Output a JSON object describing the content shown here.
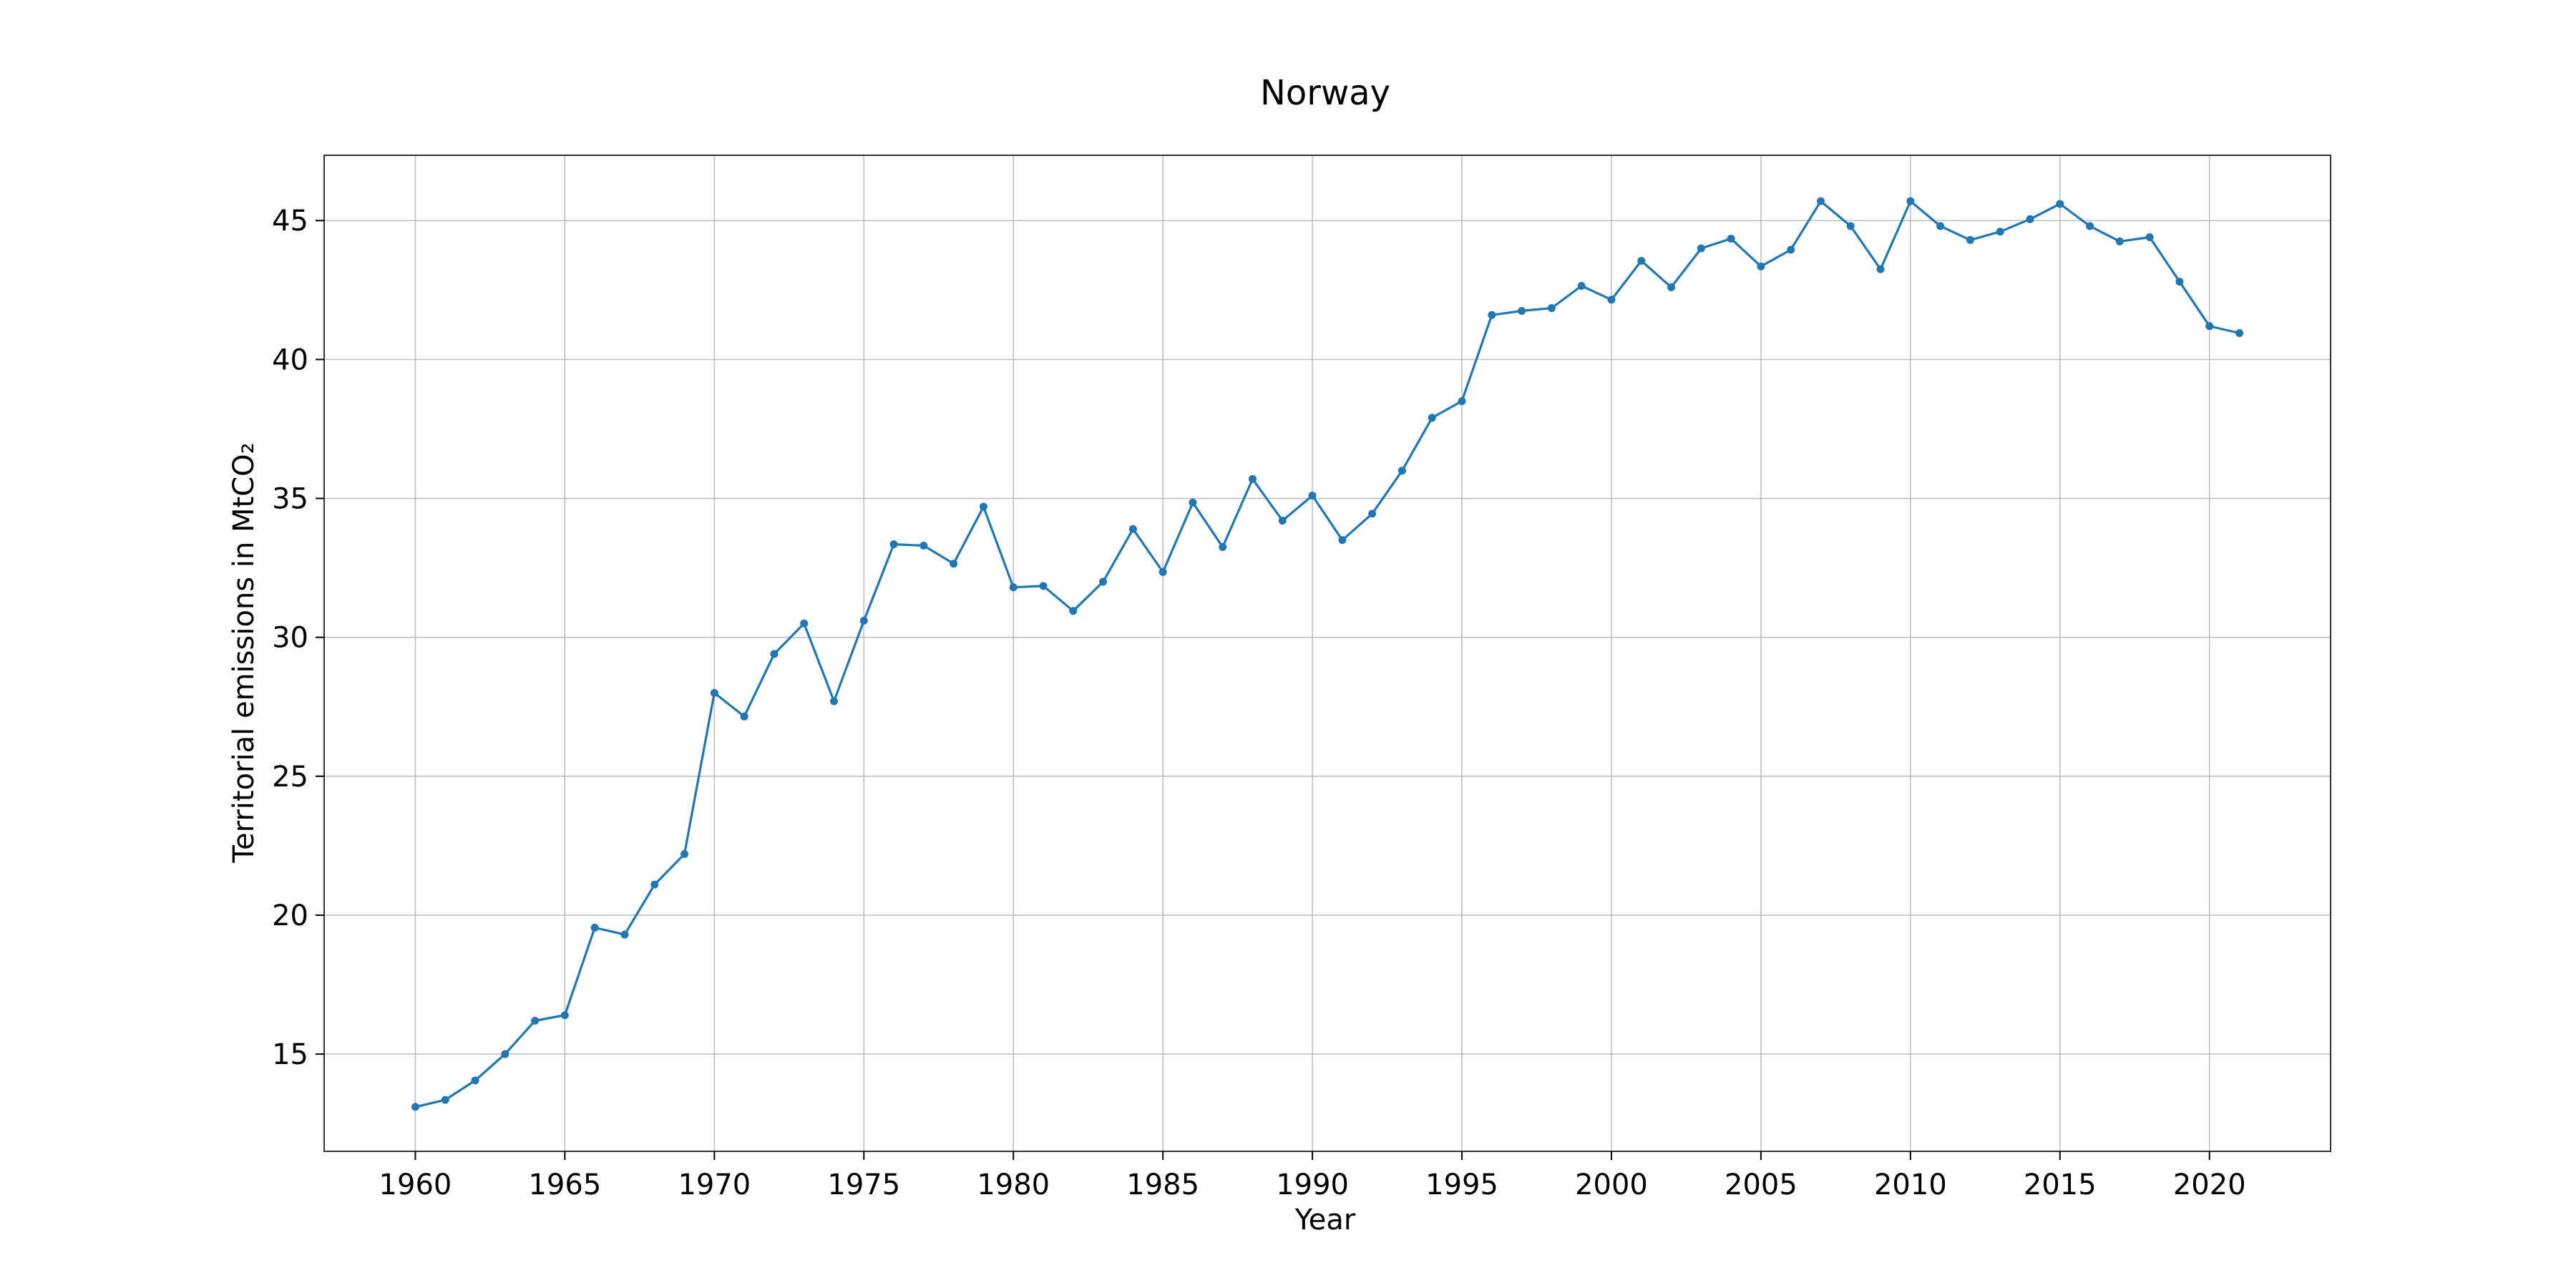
{
  "chart_data": {
    "type": "line",
    "title": "Norway",
    "xlabel": "Year",
    "ylabel": "Territorial emissions in MtCO₂",
    "xlim": [
      1956.95,
      2024.05
    ],
    "ylim": [
      11.5,
      47.35
    ],
    "xticks": [
      1960,
      1965,
      1970,
      1975,
      1980,
      1985,
      1990,
      1995,
      2000,
      2005,
      2010,
      2015,
      2020
    ],
    "yticks": [
      15,
      20,
      25,
      30,
      35,
      40,
      45
    ],
    "grid": true,
    "legend": "none",
    "series": [
      {
        "color": "#1f77b4",
        "marker": "circle",
        "x": [
          1960,
          1961,
          1962,
          1963,
          1964,
          1965,
          1966,
          1967,
          1968,
          1969,
          1970,
          1971,
          1972,
          1973,
          1974,
          1975,
          1976,
          1977,
          1978,
          1979,
          1980,
          1981,
          1982,
          1983,
          1984,
          1985,
          1986,
          1987,
          1988,
          1989,
          1990,
          1991,
          1992,
          1993,
          1994,
          1995,
          1996,
          1997,
          1998,
          1999,
          2000,
          2001,
          2002,
          2003,
          2004,
          2005,
          2006,
          2007,
          2008,
          2009,
          2010,
          2011,
          2012,
          2013,
          2014,
          2015,
          2016,
          2017,
          2018,
          2019,
          2020,
          2021
        ],
        "values": [
          13.1,
          13.35,
          14.05,
          15.0,
          16.2,
          16.4,
          19.55,
          19.3,
          21.1,
          22.2,
          28.0,
          27.15,
          29.4,
          30.5,
          27.7,
          30.6,
          33.35,
          33.3,
          32.65,
          34.7,
          31.8,
          31.85,
          30.95,
          32.0,
          33.9,
          32.35,
          34.85,
          33.25,
          35.7,
          34.2,
          35.1,
          33.5,
          34.45,
          36.0,
          37.9,
          38.5,
          41.6,
          41.75,
          41.85,
          42.65,
          42.15,
          43.55,
          42.6,
          44.0,
          44.35,
          43.35,
          43.95,
          45.7,
          44.8,
          43.25,
          45.7,
          44.8,
          44.3,
          44.6,
          45.05,
          45.6,
          44.8,
          44.25,
          44.4,
          42.8,
          41.2,
          40.95
        ]
      }
    ]
  }
}
